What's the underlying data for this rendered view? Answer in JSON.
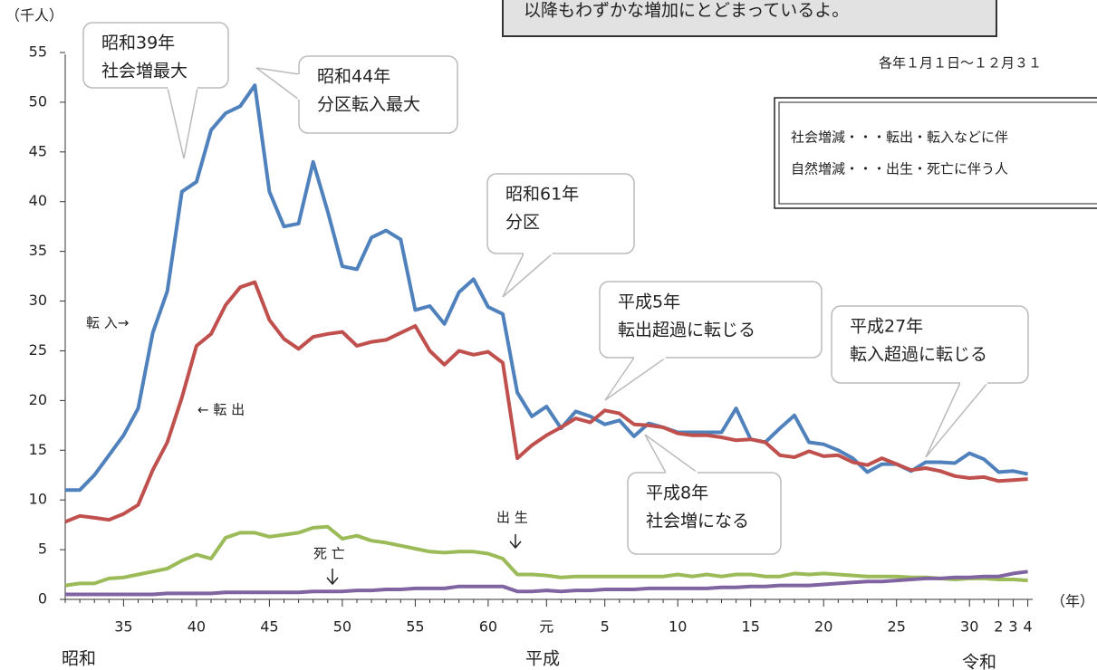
{
  "chart_data": {
    "type": "line",
    "speech": "以降もわずかな増加にとどまっているよ。",
    "note": "各年１月１日～１２月３１",
    "definitions": [
      "社会増減・・・転出・転入などに伴",
      "自然増減・・・出生・死亡に伴う人"
    ],
    "y_label": "（千人）",
    "x_unit": "（年）",
    "eras": [
      "昭和",
      "平成",
      "令和"
    ],
    "categories": [
      null,
      null,
      null,
      null,
      "35",
      null,
      null,
      null,
      null,
      "40",
      null,
      null,
      null,
      null,
      "45",
      null,
      null,
      null,
      null,
      "50",
      null,
      null,
      null,
      null,
      "55",
      null,
      null,
      null,
      null,
      "60",
      null,
      null,
      null,
      "元",
      null,
      null,
      null,
      "5",
      null,
      null,
      null,
      null,
      "10",
      null,
      null,
      null,
      null,
      "15",
      null,
      null,
      null,
      null,
      "20",
      null,
      null,
      null,
      null,
      "25",
      null,
      null,
      null,
      null,
      "30",
      null,
      "2",
      "3",
      "4"
    ],
    "ylim": [
      0,
      55
    ],
    "yticks": [
      0,
      5,
      10,
      15,
      20,
      25,
      30,
      35,
      40,
      45,
      50,
      55
    ],
    "series": [
      {
        "name": "転 入→",
        "color": "#4f81bd",
        "values": [
          11,
          11,
          12.5,
          14.5,
          16.5,
          19.2,
          26.8,
          31,
          41,
          42,
          47.2,
          48.9,
          49.6,
          51.7,
          41,
          37.5,
          37.8,
          44,
          39,
          33.5,
          33.2,
          36.4,
          37.1,
          36.2,
          29.1,
          29.5,
          27.7,
          30.9,
          32.2,
          29.4,
          28.7,
          20.8,
          18.4,
          19.4,
          17.2,
          18.9,
          18.4,
          17.6,
          18,
          16.4,
          17.7,
          17.3,
          16.8,
          16.8,
          16.8,
          16.8,
          19.2,
          16.1,
          15.8,
          17.2,
          18.5,
          15.8,
          15.6,
          15,
          14.2,
          12.8,
          13.6,
          13.6,
          12.9,
          13.8,
          13.8,
          13.7,
          14.7,
          14.1,
          12.8,
          12.9,
          12.6
        ]
      },
      {
        "name": "← 転 出",
        "color": "#c0504d",
        "values": [
          7.8,
          8.4,
          8.2,
          8.0,
          8.6,
          9.5,
          13,
          15.8,
          20.3,
          25.5,
          26.7,
          29.6,
          31.4,
          31.9,
          28.1,
          26.2,
          25.2,
          26.4,
          26.7,
          26.9,
          25.5,
          25.9,
          26.1,
          26.8,
          27.5,
          25,
          23.6,
          25,
          24.6,
          24.9,
          23.8,
          14.2,
          15.5,
          16.5,
          17.3,
          18.2,
          17.8,
          19,
          18.7,
          17.6,
          17.5,
          17.3,
          16.7,
          16.5,
          16.5,
          16.3,
          16,
          16.1,
          15.8,
          14.5,
          14.3,
          14.9,
          14.4,
          14.5,
          13.8,
          13.5,
          14.2,
          13.6,
          13,
          13.2,
          12.9,
          12.4,
          12.2,
          12.3,
          11.9,
          12,
          12.1
        ]
      },
      {
        "name": "出 生",
        "color": "#9bbb59",
        "values": [
          1.4,
          1.6,
          1.6,
          2.1,
          2.2,
          2.5,
          2.8,
          3.1,
          3.9,
          4.5,
          4.1,
          6.2,
          6.7,
          6.7,
          6.3,
          6.5,
          6.7,
          7.2,
          7.3,
          6.1,
          6.4,
          5.9,
          5.7,
          5.4,
          5.1,
          4.8,
          4.7,
          4.8,
          4.8,
          4.6,
          4.1,
          2.5,
          2.5,
          2.4,
          2.2,
          2.3,
          2.3,
          2.3,
          2.3,
          2.3,
          2.3,
          2.3,
          2.5,
          2.3,
          2.5,
          2.3,
          2.5,
          2.5,
          2.3,
          2.3,
          2.6,
          2.5,
          2.6,
          2.5,
          2.4,
          2.3,
          2.3,
          2.3,
          2.2,
          2.2,
          2.1,
          2.0,
          2.1,
          2.1,
          2.0,
          2.0,
          1.9
        ]
      },
      {
        "name": "死 亡",
        "color": "#8064a2",
        "values": [
          0.5,
          0.5,
          0.5,
          0.5,
          0.5,
          0.5,
          0.5,
          0.6,
          0.6,
          0.6,
          0.6,
          0.7,
          0.7,
          0.7,
          0.7,
          0.7,
          0.7,
          0.8,
          0.8,
          0.8,
          0.9,
          0.9,
          1.0,
          1.0,
          1.1,
          1.1,
          1.1,
          1.3,
          1.3,
          1.3,
          1.3,
          0.8,
          0.8,
          0.9,
          0.8,
          0.9,
          0.9,
          1.0,
          1.0,
          1.0,
          1.1,
          1.1,
          1.1,
          1.1,
          1.1,
          1.2,
          1.2,
          1.3,
          1.3,
          1.4,
          1.4,
          1.4,
          1.5,
          1.6,
          1.7,
          1.8,
          1.8,
          1.9,
          2.0,
          2.1,
          2.1,
          2.2,
          2.2,
          2.3,
          2.3,
          2.6,
          2.8
        ]
      }
    ],
    "annotations": [
      [
        "昭和39年",
        "社会増最大"
      ],
      [
        "昭和44年",
        "分区転入最大"
      ],
      [
        "昭和61年",
        "分区"
      ],
      [
        "平成5年",
        "転出超過に転じる"
      ],
      [
        "平成27年",
        "転入超過に転じる"
      ],
      [
        "平成8年",
        "社会増になる"
      ]
    ]
  }
}
